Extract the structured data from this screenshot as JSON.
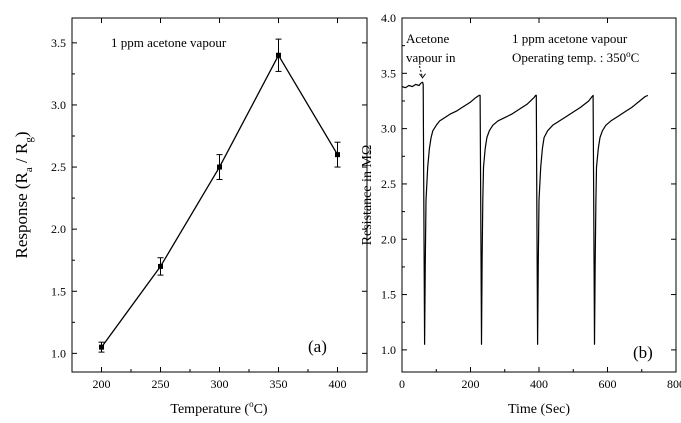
{
  "chart_data": [
    {
      "type": "line",
      "panel_label": "(a)",
      "annotation": "1 ppm acetone vapour",
      "xlabel": {
        "text": "Temperature (",
        "sup": "o",
        "tail": "C)"
      },
      "ylabel": {
        "text": "Response (R",
        "sub1": "a",
        "mid": " / R",
        "sub2": "g",
        "tail": ")"
      },
      "xlim": [
        175,
        425
      ],
      "ylim": [
        0.85,
        3.7
      ],
      "x_ticks": [
        "200",
        "250",
        "300",
        "350",
        "400"
      ],
      "y_ticks": [
        "1.0",
        "1.5",
        "2.0",
        "2.5",
        "3.0",
        "3.5"
      ],
      "grid": false,
      "series": [
        {
          "x": [
            200,
            250,
            300,
            350,
            400
          ],
          "y": [
            1.05,
            1.7,
            2.5,
            3.4,
            2.6
          ],
          "error": [
            0.04,
            0.07,
            0.1,
            0.13,
            0.1
          ],
          "marker": "square"
        }
      ]
    },
    {
      "type": "line",
      "panel_label": "(b)",
      "annotations": [
        "Acetone",
        "vapour in",
        "1 ppm acetone vapour",
        {
          "text": "Operating temp. : 350",
          "sup": "o",
          "tail": "C"
        }
      ],
      "xlabel": "Time (Sec)",
      "ylabel": "Resistance in MΩ",
      "xlim": [
        0,
        800
      ],
      "ylim": [
        0.8,
        4.0
      ],
      "x_ticks": [
        "0",
        "200",
        "400",
        "600",
        "800"
      ],
      "y_ticks": [
        "1.0",
        "1.5",
        "2.0",
        "2.5",
        "3.0",
        "3.5",
        "4.0"
      ],
      "grid": false,
      "series": [
        {
          "x": [
            0,
            10,
            20,
            30,
            40,
            50,
            55,
            60,
            62,
            64,
            66,
            68,
            70,
            75,
            80,
            85,
            90,
            100,
            110,
            125,
            140,
            160,
            180,
            200,
            215,
            225,
            228,
            230,
            232,
            234,
            236,
            238,
            243,
            248,
            255,
            265,
            280,
            300,
            320,
            340,
            365,
            385,
            390,
            392,
            394,
            396,
            398,
            400,
            405,
            410,
            415,
            425,
            440,
            460,
            480,
            500,
            520,
            545,
            555,
            558,
            560,
            562,
            564,
            566,
            568,
            573,
            578,
            585,
            595,
            610,
            630,
            650,
            670,
            690,
            710,
            718
          ],
          "y": [
            3.38,
            3.37,
            3.39,
            3.38,
            3.4,
            3.39,
            3.41,
            3.42,
            3.4,
            2.2,
            1.05,
            1.8,
            2.35,
            2.65,
            2.82,
            2.92,
            2.98,
            3.03,
            3.07,
            3.1,
            3.13,
            3.16,
            3.2,
            3.24,
            3.28,
            3.3,
            3.3,
            2.2,
            1.05,
            1.8,
            2.35,
            2.65,
            2.82,
            2.92,
            2.98,
            3.03,
            3.07,
            3.1,
            3.13,
            3.17,
            3.22,
            3.28,
            3.3,
            3.3,
            2.2,
            1.05,
            1.8,
            2.35,
            2.65,
            2.82,
            2.92,
            2.98,
            3.03,
            3.07,
            3.11,
            3.15,
            3.19,
            3.25,
            3.29,
            3.3,
            2.2,
            1.05,
            1.8,
            2.35,
            2.65,
            2.82,
            2.92,
            2.98,
            3.03,
            3.07,
            3.11,
            3.15,
            3.19,
            3.24,
            3.29,
            3.3
          ]
        }
      ]
    }
  ],
  "colors": {
    "ink": "#000000",
    "background": "#ffffff"
  }
}
